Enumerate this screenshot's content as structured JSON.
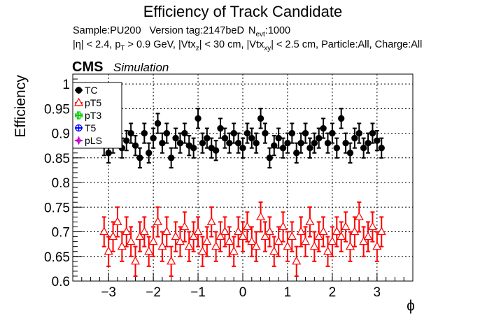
{
  "chart_data": {
    "type": "scatter",
    "title": "Efficiency of Track Candidate",
    "subtitle": {
      "sample": "Sample:PU200",
      "version": "Version tag:2147beD",
      "nevt_prefix": "N",
      "nevt_sub": "evt",
      "nevt_value": ":1000"
    },
    "cuts": {
      "eta": "|η| < 2.4, p",
      "pt_sub": "T",
      "pt_rest": " > 0.9 GeV, |Vtx",
      "vz_sub": "z",
      "vz_rest": "| < 30 cm, |Vtx",
      "vxy_sub": "xy",
      "vxy_rest": "| < 2.5 cm, Particle:All, Charge:All"
    },
    "cms_label": "CMS",
    "sim_label": "Simulation",
    "xlabel": "ϕ",
    "ylabel": "Efficiency",
    "xlim": [
      -3.8,
      3.8
    ],
    "ylim": [
      0.6,
      1.02
    ],
    "xticks": [
      -3,
      -2,
      -1,
      0,
      1,
      2,
      3
    ],
    "xtick_labels": [
      "−3",
      "−2",
      "−1",
      "0",
      "1",
      "2",
      "3"
    ],
    "yticks": [
      0.6,
      0.65,
      0.7,
      0.75,
      0.8,
      0.85,
      0.9,
      0.95,
      1
    ],
    "ytick_labels": [
      "0.6",
      "0.65",
      "0.7",
      "0.75",
      "0.8",
      "0.85",
      "0.9",
      "0.95",
      "1"
    ],
    "grid": true,
    "legend_position": "top-left",
    "series": [
      {
        "name": "TC",
        "color": "#000000",
        "marker": "filled-circle",
        "x": [
          -3.1,
          -3.0,
          -2.9,
          -2.8,
          -2.7,
          -2.6,
          -2.5,
          -2.4,
          -2.3,
          -2.2,
          -2.1,
          -2.0,
          -1.9,
          -1.8,
          -1.7,
          -1.6,
          -1.5,
          -1.4,
          -1.3,
          -1.2,
          -1.1,
          -1.0,
          -0.9,
          -0.8,
          -0.7,
          -0.6,
          -0.5,
          -0.4,
          -0.3,
          -0.2,
          -0.1,
          0.0,
          0.1,
          0.2,
          0.3,
          0.4,
          0.5,
          0.6,
          0.7,
          0.8,
          0.9,
          1.0,
          1.1,
          1.2,
          1.3,
          1.4,
          1.5,
          1.6,
          1.7,
          1.8,
          1.9,
          2.0,
          2.1,
          2.2,
          2.3,
          2.4,
          2.5,
          2.6,
          2.7,
          2.8,
          2.9,
          3.0,
          3.1
        ],
        "y": [
          0.875,
          0.86,
          0.88,
          0.895,
          0.87,
          0.885,
          0.9,
          0.875,
          0.85,
          0.9,
          0.86,
          0.89,
          0.92,
          0.88,
          0.9,
          0.85,
          0.89,
          0.88,
          0.9,
          0.875,
          0.87,
          0.93,
          0.88,
          0.89,
          0.87,
          0.865,
          0.91,
          0.89,
          0.88,
          0.9,
          0.88,
          0.87,
          0.9,
          0.89,
          0.88,
          0.93,
          0.9,
          0.85,
          0.875,
          0.89,
          0.87,
          0.88,
          0.9,
          0.86,
          0.88,
          0.9,
          0.87,
          0.88,
          0.89,
          0.91,
          0.88,
          0.9,
          0.87,
          0.93,
          0.88,
          0.86,
          0.89,
          0.9,
          0.87,
          0.88,
          0.9,
          0.885,
          0.87
        ],
        "err": 0.02
      },
      {
        "name": "pT5",
        "color": "#ff0000",
        "marker": "open-triangle",
        "x": [
          -3.1,
          -3.0,
          -2.9,
          -2.8,
          -2.7,
          -2.6,
          -2.5,
          -2.4,
          -2.3,
          -2.2,
          -2.1,
          -2.0,
          -1.9,
          -1.8,
          -1.7,
          -1.6,
          -1.5,
          -1.4,
          -1.3,
          -1.2,
          -1.1,
          -1.0,
          -0.9,
          -0.8,
          -0.7,
          -0.6,
          -0.5,
          -0.4,
          -0.3,
          -0.2,
          -0.1,
          0.0,
          0.1,
          0.2,
          0.3,
          0.4,
          0.5,
          0.6,
          0.7,
          0.8,
          0.9,
          1.0,
          1.1,
          1.2,
          1.3,
          1.4,
          1.5,
          1.6,
          1.7,
          1.8,
          1.9,
          2.0,
          2.1,
          2.2,
          2.3,
          2.4,
          2.5,
          2.6,
          2.7,
          2.8,
          2.9,
          3.0,
          3.1
        ],
        "y": [
          0.7,
          0.66,
          0.69,
          0.72,
          0.67,
          0.7,
          0.68,
          0.64,
          0.69,
          0.7,
          0.66,
          0.68,
          0.72,
          0.67,
          0.7,
          0.64,
          0.69,
          0.68,
          0.71,
          0.67,
          0.69,
          0.7,
          0.66,
          0.68,
          0.72,
          0.67,
          0.69,
          0.7,
          0.68,
          0.66,
          0.7,
          0.69,
          0.71,
          0.68,
          0.67,
          0.73,
          0.69,
          0.7,
          0.66,
          0.68,
          0.71,
          0.67,
          0.69,
          0.64,
          0.7,
          0.68,
          0.72,
          0.67,
          0.69,
          0.7,
          0.66,
          0.68,
          0.7,
          0.69,
          0.71,
          0.67,
          0.7,
          0.73,
          0.68,
          0.69,
          0.71,
          0.67,
          0.7
        ],
        "err": 0.03
      },
      {
        "name": "pT3",
        "color": "#00cc00",
        "marker": "open-cross",
        "x": [],
        "y": []
      },
      {
        "name": "T5",
        "color": "#0000ff",
        "marker": "open-circle",
        "x": [],
        "y": []
      },
      {
        "name": "pLS",
        "color": "#cc00cc",
        "marker": "open-star",
        "x": [],
        "y": []
      }
    ]
  }
}
